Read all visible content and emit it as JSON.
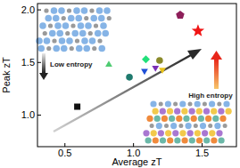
{
  "chart_data": {
    "type": "scatter",
    "x_label": "Average zT",
    "y_label": "Peak zT",
    "xlim": [
      0.3,
      1.75
    ],
    "xticks": [
      0.5,
      1.0,
      1.5
    ],
    "ylim": [
      0.7,
      2.06
    ],
    "yticks": [
      1.0,
      1.5,
      2.0
    ],
    "grid": false,
    "series": [
      {
        "color": "#111111",
        "marker": "square",
        "x": [
          0.59
        ],
        "values": [
          1.08
        ]
      },
      {
        "color": "#4ecb71",
        "marker": "triangle-up",
        "x": [
          0.82
        ],
        "values": [
          1.48
        ]
      },
      {
        "color": "#1f7a6e",
        "marker": "circle",
        "x": [
          0.97
        ],
        "values": [
          1.36
        ]
      },
      {
        "color": "#22e07a",
        "marker": "diamond",
        "x": [
          1.09
        ],
        "values": [
          1.53
        ]
      },
      {
        "color": "#1f4fd6",
        "marker": "triangle-down",
        "x": [
          1.08
        ],
        "values": [
          1.42
        ]
      },
      {
        "color": "#7b2fb5",
        "marker": "triangle-down",
        "x": [
          1.16
        ],
        "values": [
          1.45
        ]
      },
      {
        "color": "#8a8a2a",
        "marker": "circle",
        "x": [
          1.19
        ],
        "values": [
          1.52
        ]
      },
      {
        "color": "#e8c21a",
        "marker": "triangle-down",
        "x": [
          1.21
        ],
        "values": [
          1.43
        ]
      },
      {
        "color": "#8e1f5a",
        "marker": "pentagon",
        "x": [
          1.34
        ],
        "values": [
          1.95
        ]
      },
      {
        "color": "#f01515",
        "marker": "star",
        "x": [
          1.47
        ],
        "values": [
          1.8
        ]
      }
    ],
    "annotations": [
      {
        "text": "Low entropy"
      },
      {
        "text": "High entropy"
      }
    ]
  }
}
